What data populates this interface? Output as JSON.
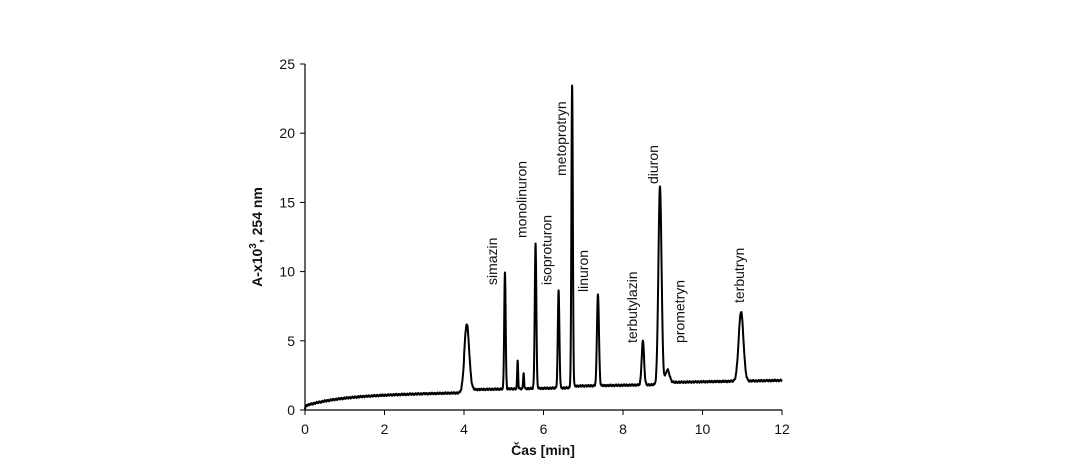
{
  "chart_data": {
    "type": "line",
    "title": "",
    "xlabel": "Čas [min]",
    "ylabel_main": "A-x10",
    "ylabel_sup": "3",
    "ylabel_tail": ", 254 nm",
    "xlim": [
      0,
      12
    ],
    "ylim": [
      0,
      25
    ],
    "x_ticks": [
      0,
      2,
      4,
      6,
      8,
      10,
      12
    ],
    "y_ticks": [
      0,
      5,
      10,
      15,
      20,
      25
    ],
    "grid": false,
    "legend": "none",
    "line_color": "#000000",
    "peaks": [
      {
        "label": "",
        "t": 4.07,
        "h": 6.2,
        "w": 0.06
      },
      {
        "label": "simazin",
        "t": 5.03,
        "h": 10.0,
        "w": 0.018
      },
      {
        "label": "",
        "t": 5.35,
        "h": 3.6,
        "w": 0.012
      },
      {
        "label": "",
        "t": 5.5,
        "h": 2.7,
        "w": 0.012
      },
      {
        "label": "monolinuron",
        "t": 5.8,
        "h": 12.0,
        "w": 0.02
      },
      {
        "label": "isoproturon",
        "t": 6.38,
        "h": 8.6,
        "w": 0.02
      },
      {
        "label": "metoprotryn",
        "t": 6.72,
        "h": 23.4,
        "w": 0.018
      },
      {
        "label": "linuron",
        "t": 7.37,
        "h": 8.4,
        "w": 0.025
      },
      {
        "label": "terbutylazin",
        "t": 8.5,
        "h": 5.0,
        "w": 0.03
      },
      {
        "label": "diuron",
        "t": 8.93,
        "h": 16.1,
        "w": 0.04
      },
      {
        "label": "prometryn",
        "t": 9.12,
        "h": 2.9,
        "w": 0.05
      },
      {
        "label": "terbutryn",
        "t": 10.97,
        "h": 7.1,
        "w": 0.06
      }
    ]
  }
}
